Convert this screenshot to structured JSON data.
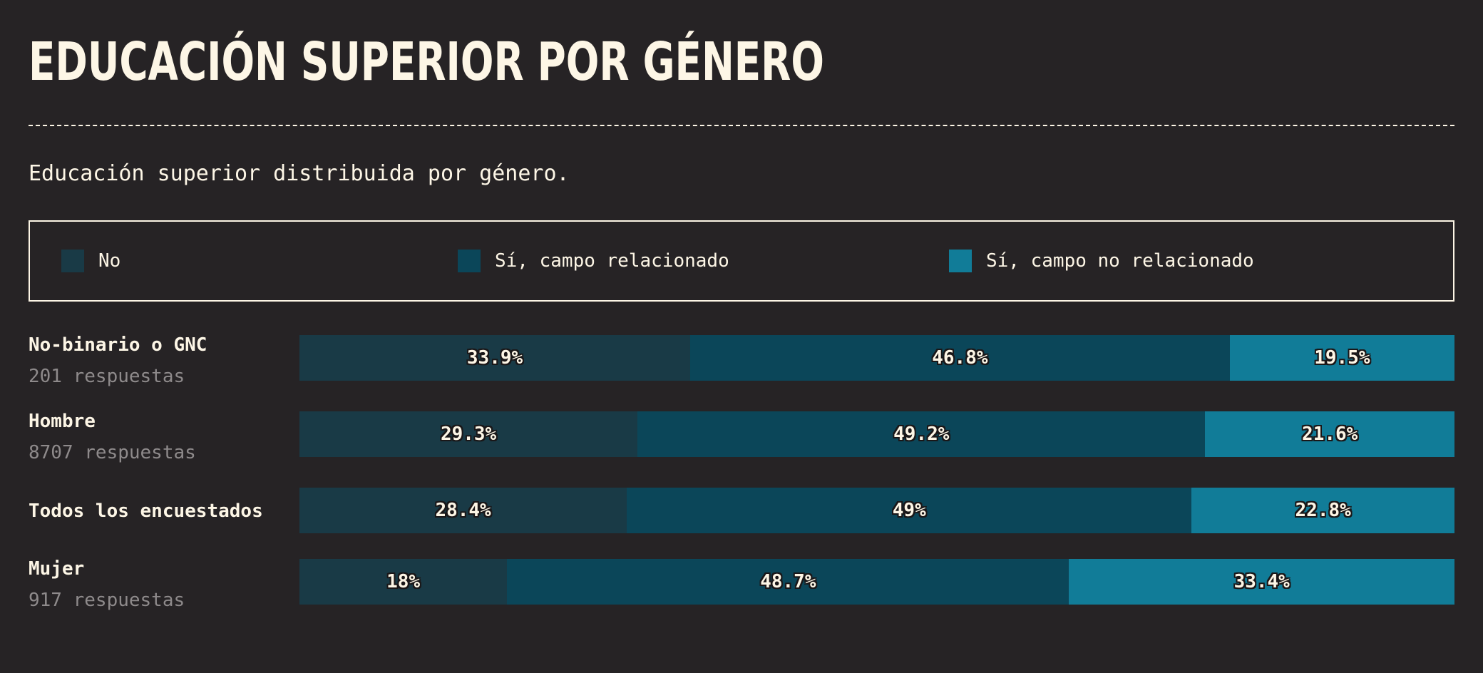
{
  "title": "Educación superior por género",
  "subtitle": "Educación superior distribuida por género.",
  "colors": {
    "background": "#262325",
    "text": "#fdf6e6",
    "muted": "#8e8a8b",
    "no": "#193a46",
    "related": "#0b4659",
    "unrelated": "#117c98"
  },
  "chart_data": {
    "type": "bar",
    "stacked": true,
    "orientation": "horizontal",
    "normalized_percent": true,
    "legend_position": "top",
    "categories": [
      "No-binario o GNC",
      "Hombre",
      "Todos los encuestados",
      "Mujer"
    ],
    "category_notes": [
      "201 respuestas",
      "8707 respuestas",
      "",
      "917 respuestas"
    ],
    "series": [
      {
        "name": "No",
        "color": "#193a46",
        "values": [
          33.9,
          29.3,
          28.4,
          18
        ],
        "labels": [
          "33.9%",
          "29.3%",
          "28.4%",
          "18%"
        ]
      },
      {
        "name": "Sí, campo relacionado",
        "color": "#0b4659",
        "values": [
          46.8,
          49.2,
          49,
          48.7
        ],
        "labels": [
          "46.8%",
          "49.2%",
          "49%",
          "48.7%"
        ]
      },
      {
        "name": "Sí, campo no relacionado",
        "color": "#117c98",
        "values": [
          19.5,
          21.6,
          22.8,
          33.4
        ],
        "labels": [
          "19.5%",
          "21.6%",
          "22.8%",
          "33.4%"
        ]
      }
    ]
  }
}
